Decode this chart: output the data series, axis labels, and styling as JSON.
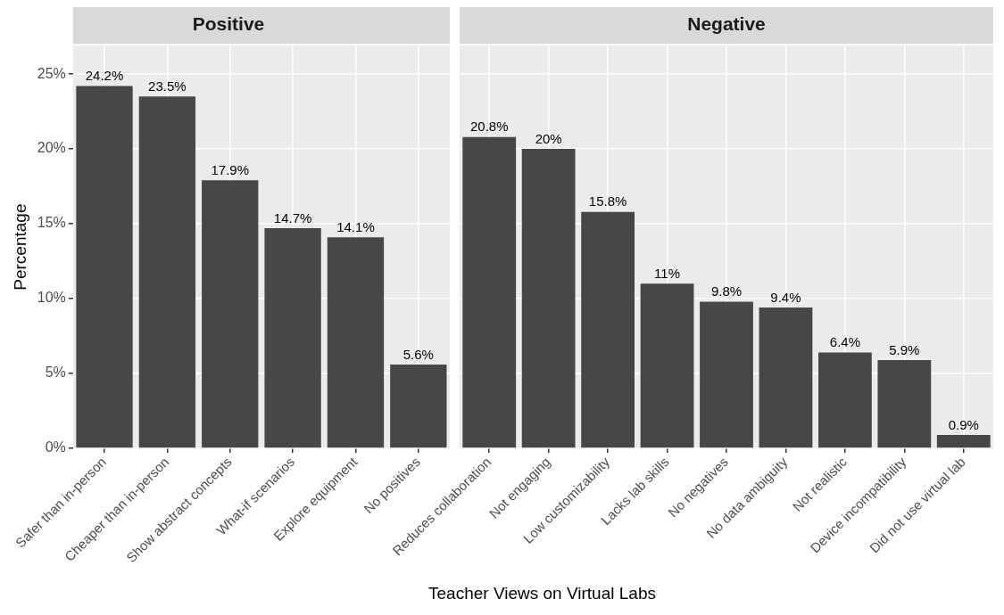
{
  "chart_data": [
    {
      "type": "bar",
      "title": "Positive",
      "ylabel": "Percentage",
      "xlabel": "Teacher Views on Virtual Labs",
      "categories": [
        "Safer than in-person",
        "Cheaper than in-person",
        "Show abstract concepts",
        "What-if scenarios",
        "Explore equipment",
        "No positives"
      ],
      "values": [
        24.2,
        23.5,
        17.9,
        14.7,
        14.1,
        5.6
      ],
      "color": "#474747",
      "value_labels": [
        "24.2%",
        "23.5%",
        "17.9%",
        "14.7%",
        "14.1%",
        "5.6%"
      ],
      "ylim": [
        0,
        26.9
      ],
      "yticks": [
        {
          "value": 0,
          "label": "0%"
        },
        {
          "value": 5,
          "label": "5%"
        },
        {
          "value": 10,
          "label": "10%"
        },
        {
          "value": 15,
          "label": "15%"
        },
        {
          "value": 20,
          "label": "20%"
        },
        {
          "value": 25,
          "label": "25%"
        }
      ],
      "grid": true,
      "legend": false
    },
    {
      "type": "bar",
      "title": "Negative",
      "categories": [
        "Reduces collaboration",
        "Not engaging",
        "Low customizability",
        "Lacks lab skills",
        "No negatives",
        "No data ambiguity",
        "Not realistic",
        "Device incompatibility",
        "Did not use virtual lab"
      ],
      "values": [
        20.8,
        20,
        15.8,
        11,
        9.8,
        9.4,
        6.4,
        5.9,
        0.9
      ],
      "color": "#474747",
      "value_labels": [
        "20.8%",
        "20%",
        "15.8%",
        "11%",
        "9.8%",
        "9.4%",
        "6.4%",
        "5.9%",
        "0.9%"
      ],
      "ylim": [
        0,
        26.9
      ],
      "yticks": [
        0,
        5,
        10,
        15,
        20,
        25
      ],
      "grid": true,
      "legend": false,
      "tick_labels": "x"
    }
  ]
}
